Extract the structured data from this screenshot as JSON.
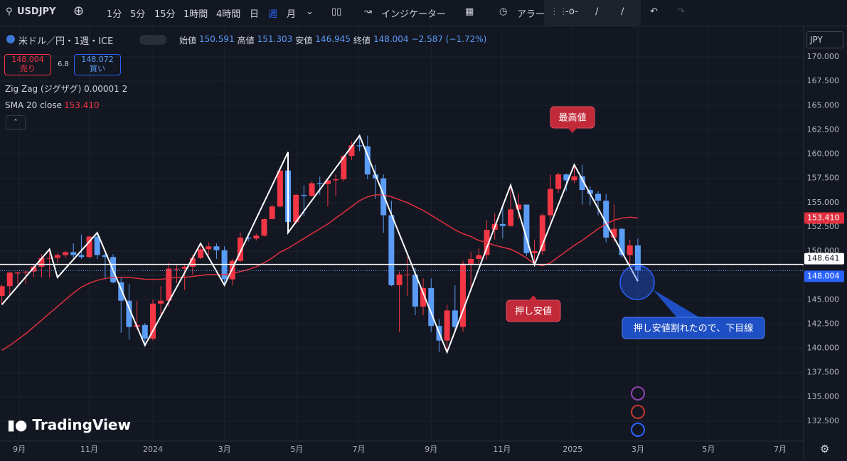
{
  "toolbar": {
    "symbol": "USDJPY",
    "intervals": [
      "1分",
      "5分",
      "15分",
      "1時間",
      "4時間",
      "日",
      "週",
      "月"
    ],
    "indicators": "インジケーター",
    "alert": "アラー"
  },
  "legend": {
    "title": "米ドル／円・1週・ICE",
    "ohlc": [
      {
        "label": "始値",
        "value": "150.591"
      },
      {
        "label": "高値",
        "value": "151.303"
      },
      {
        "label": "安値",
        "value": "146.945"
      },
      {
        "label": "終値",
        "value": "148.004"
      }
    ],
    "change": "−2.587 (−1.72%)",
    "sell": {
      "price": "148.004",
      "label": "売り"
    },
    "spread": "6.8",
    "buy": {
      "price": "148.072",
      "label": "買い"
    },
    "zigzag": "Zig Zag (ジグザグ) 0.00001 2",
    "sma": "SMA 20 close",
    "sma_value": "153.410"
  },
  "currency": "JPY",
  "watermark": "TradingView",
  "chart_data": {
    "type": "candlestick",
    "up_color": "#f23645",
    "down_color": "#5b9cf6",
    "grid": true,
    "xlim": [
      -0.23,
      100.85
    ],
    "ylim": [
      130.45,
      172.93
    ],
    "xticks": [
      {
        "value": 2.2,
        "label": "9月"
      },
      {
        "value": 11,
        "label": "11月"
      },
      {
        "value": 19,
        "label": "2024"
      },
      {
        "value": 28,
        "label": "3月"
      },
      {
        "value": 37.1,
        "label": "5月"
      },
      {
        "value": 44.9,
        "label": "7月"
      },
      {
        "value": 54,
        "label": "9月"
      },
      {
        "value": 62.9,
        "label": "11月"
      },
      {
        "value": 71.8,
        "label": "2025"
      },
      {
        "value": 80,
        "label": "3月"
      },
      {
        "value": 88.9,
        "label": "5月"
      },
      {
        "value": 97.9,
        "label": "7月"
      }
    ],
    "yticks": [
      {
        "value": 132.5,
        "label": "132.500"
      },
      {
        "value": 135,
        "label": "135.000"
      },
      {
        "value": 137.5,
        "label": "137.500"
      },
      {
        "value": 140,
        "label": "140.000"
      },
      {
        "value": 142.5,
        "label": "142.500"
      },
      {
        "value": 145,
        "label": "145.000"
      },
      {
        "value": 147.5,
        "label": "147.500"
      },
      {
        "value": 150,
        "label": "150.000"
      },
      {
        "value": 152.5,
        "label": "152.500"
      },
      {
        "value": 155,
        "label": "155.000"
      },
      {
        "value": 157.5,
        "label": "157.500"
      },
      {
        "value": 160,
        "label": "160.000"
      },
      {
        "value": 162.5,
        "label": "162.500"
      },
      {
        "value": 165,
        "label": "165.000"
      },
      {
        "value": 167.5,
        "label": "167.500"
      },
      {
        "value": 170,
        "label": "170.000"
      }
    ],
    "open": [
      145.4,
      146.4,
      147.7,
      147.8,
      147.9,
      148.4,
      149.3,
      149.3,
      149.6,
      149.9,
      149.6,
      149.4,
      151.5,
      149.6,
      149.4,
      146.8,
      144.9,
      142.2,
      142.4,
      141.0,
      144.6,
      144.9,
      148.2,
      148.2,
      148.4,
      149.3,
      150.2,
      150.5,
      150.1,
      147.1,
      149.0,
      151.4,
      151.3,
      151.6,
      153.3,
      154.6,
      158.3,
      153.0,
      155.8,
      155.7,
      157.0,
      156.9,
      157.3,
      157.4,
      159.8,
      160.9,
      160.8,
      157.9,
      157.5,
      153.7,
      146.5,
      147.6,
      147.6,
      144.3,
      146.2,
      142.3,
      140.8,
      143.9,
      142.2,
      148.7,
      149.2,
      149.6,
      152.2,
      152.8,
      152.6,
      154.3,
      154.8,
      149.8,
      150.0,
      153.7,
      156.4,
      157.9,
      157.3,
      157.7,
      156.3,
      155.9,
      155.2,
      151.4,
      152.3,
      149.6,
      150.591
    ],
    "high": [
      146.6,
      147.9,
      147.9,
      148.0,
      148.5,
      149.7,
      150.2,
      149.8,
      150.0,
      150.8,
      151.7,
      151.6,
      151.9,
      149.8,
      149.7,
      147.3,
      146.6,
      144.9,
      142.6,
      145.0,
      146.4,
      148.8,
      148.7,
      148.6,
      149.6,
      150.9,
      150.9,
      150.8,
      150.5,
      149.2,
      151.9,
      151.9,
      151.8,
      153.4,
      154.8,
      158.4,
      160.2,
      155.9,
      156.8,
      157.2,
      157.7,
      157.4,
      157.9,
      159.9,
      161.3,
      162.0,
      161.9,
      158.9,
      157.9,
      155.2,
      147.9,
      149.4,
      148.3,
      147.2,
      147.2,
      143.0,
      144.5,
      146.5,
      149.0,
      149.9,
      150.3,
      153.2,
      153.9,
      154.7,
      156.8,
      155.9,
      154.8,
      151.2,
      153.9,
      157.9,
      158.1,
      158.0,
      158.9,
      158.9,
      156.7,
      156.2,
      155.9,
      154.8,
      152.4,
      151.2,
      151.303
    ],
    "low": [
      144.5,
      145.4,
      146.6,
      146.6,
      147.3,
      147.3,
      147.3,
      148.8,
      149.3,
      149.3,
      149.2,
      149.3,
      149.2,
      147.1,
      146.7,
      141.6,
      140.9,
      141.9,
      140.3,
      140.8,
      143.4,
      144.3,
      146.7,
      146.0,
      147.6,
      149.2,
      149.6,
      149.2,
      146.5,
      146.5,
      148.9,
      151.0,
      151.1,
      151.5,
      153.3,
      154.5,
      151.9,
      152.8,
      153.6,
      155.6,
      155.8,
      154.6,
      155.7,
      157.2,
      159.4,
      160.3,
      157.4,
      155.4,
      151.9,
      146.4,
      141.7,
      145.4,
      143.4,
      143.4,
      141.7,
      139.6,
      139.6,
      141.6,
      141.7,
      145.9,
      148.6,
      149.1,
      151.2,
      151.3,
      152.5,
      153.3,
      149.5,
      148.6,
      149.6,
      153.1,
      156.0,
      156.2,
      157.0,
      154.8,
      154.7,
      153.7,
      150.9,
      150.9,
      149.3,
      148.6,
      146.945
    ],
    "close": [
      146.4,
      147.8,
      147.8,
      147.9,
      148.4,
      149.3,
      149.3,
      149.6,
      149.9,
      149.6,
      149.4,
      151.5,
      149.6,
      149.4,
      146.8,
      144.9,
      142.2,
      142.4,
      141.0,
      144.6,
      144.9,
      148.2,
      148.2,
      148.4,
      149.3,
      150.2,
      150.5,
      150.1,
      147.1,
      149.0,
      151.4,
      151.3,
      151.6,
      153.3,
      154.6,
      158.3,
      153.0,
      155.8,
      155.7,
      157.0,
      156.9,
      157.3,
      157.4,
      159.8,
      160.9,
      160.8,
      157.9,
      157.5,
      153.7,
      146.5,
      147.6,
      147.6,
      144.3,
      146.2,
      142.3,
      140.8,
      143.9,
      142.2,
      148.7,
      149.2,
      149.6,
      152.2,
      152.8,
      152.6,
      154.3,
      154.8,
      149.8,
      150.0,
      153.7,
      156.4,
      157.9,
      157.3,
      157.7,
      156.3,
      155.9,
      155.2,
      151.4,
      152.3,
      149.6,
      150.6,
      148.004
    ],
    "sma": {
      "color": "#e0303e",
      "values": [
        139.8,
        140.3,
        140.9,
        141.5,
        142.2,
        142.9,
        143.6,
        144.3,
        145.0,
        145.7,
        146.3,
        146.7,
        147.0,
        147.2,
        147.3,
        147.3,
        147.3,
        147.2,
        147.1,
        147.1,
        147.1,
        147.2,
        147.3,
        147.3,
        147.4,
        147.5,
        147.6,
        147.6,
        147.6,
        147.7,
        147.9,
        148.1,
        148.4,
        148.8,
        149.3,
        149.9,
        150.3,
        150.8,
        151.3,
        151.8,
        152.3,
        152.8,
        153.4,
        154.0,
        154.6,
        155.2,
        155.6,
        155.8,
        155.8,
        155.6,
        155.3,
        155.0,
        154.6,
        154.2,
        153.7,
        153.2,
        152.7,
        152.2,
        151.8,
        151.5,
        151.1,
        150.9,
        150.6,
        150.4,
        150.2,
        149.8,
        149.3,
        148.7,
        148.5,
        148.8,
        149.4,
        150.0,
        150.6,
        151.1,
        151.7,
        152.3,
        152.8,
        153.2,
        153.4,
        153.5,
        153.41
      ]
    },
    "sma_label": {
      "value": 153.41,
      "label": "153.410"
    },
    "zigzag": {
      "color": "#ffffff",
      "x": [
        0,
        6,
        7,
        12,
        18,
        25,
        28,
        36,
        36,
        45,
        56,
        64,
        67,
        72,
        80
      ],
      "values": [
        144.5,
        150.2,
        147.3,
        151.9,
        140.3,
        150.8,
        146.5,
        160.2,
        151.9,
        161.9,
        139.6,
        156.8,
        148.6,
        158.9,
        146.9
      ]
    },
    "hline": {
      "value": 148.641,
      "color": "#ffffff"
    },
    "annotations": [
      {
        "text": "最高値"
      },
      {
        "text": "押し安値"
      },
      {
        "text": "押し安値割れたので、下目線"
      }
    ]
  }
}
